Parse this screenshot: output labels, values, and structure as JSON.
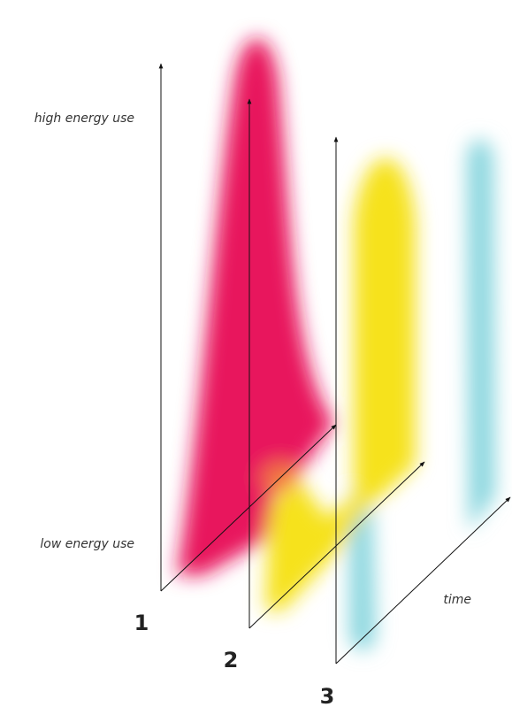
{
  "labels": {
    "high": "high energy use",
    "low": "low energy use",
    "time": "time"
  },
  "axes": [
    "1",
    "2",
    "3"
  ]
}
